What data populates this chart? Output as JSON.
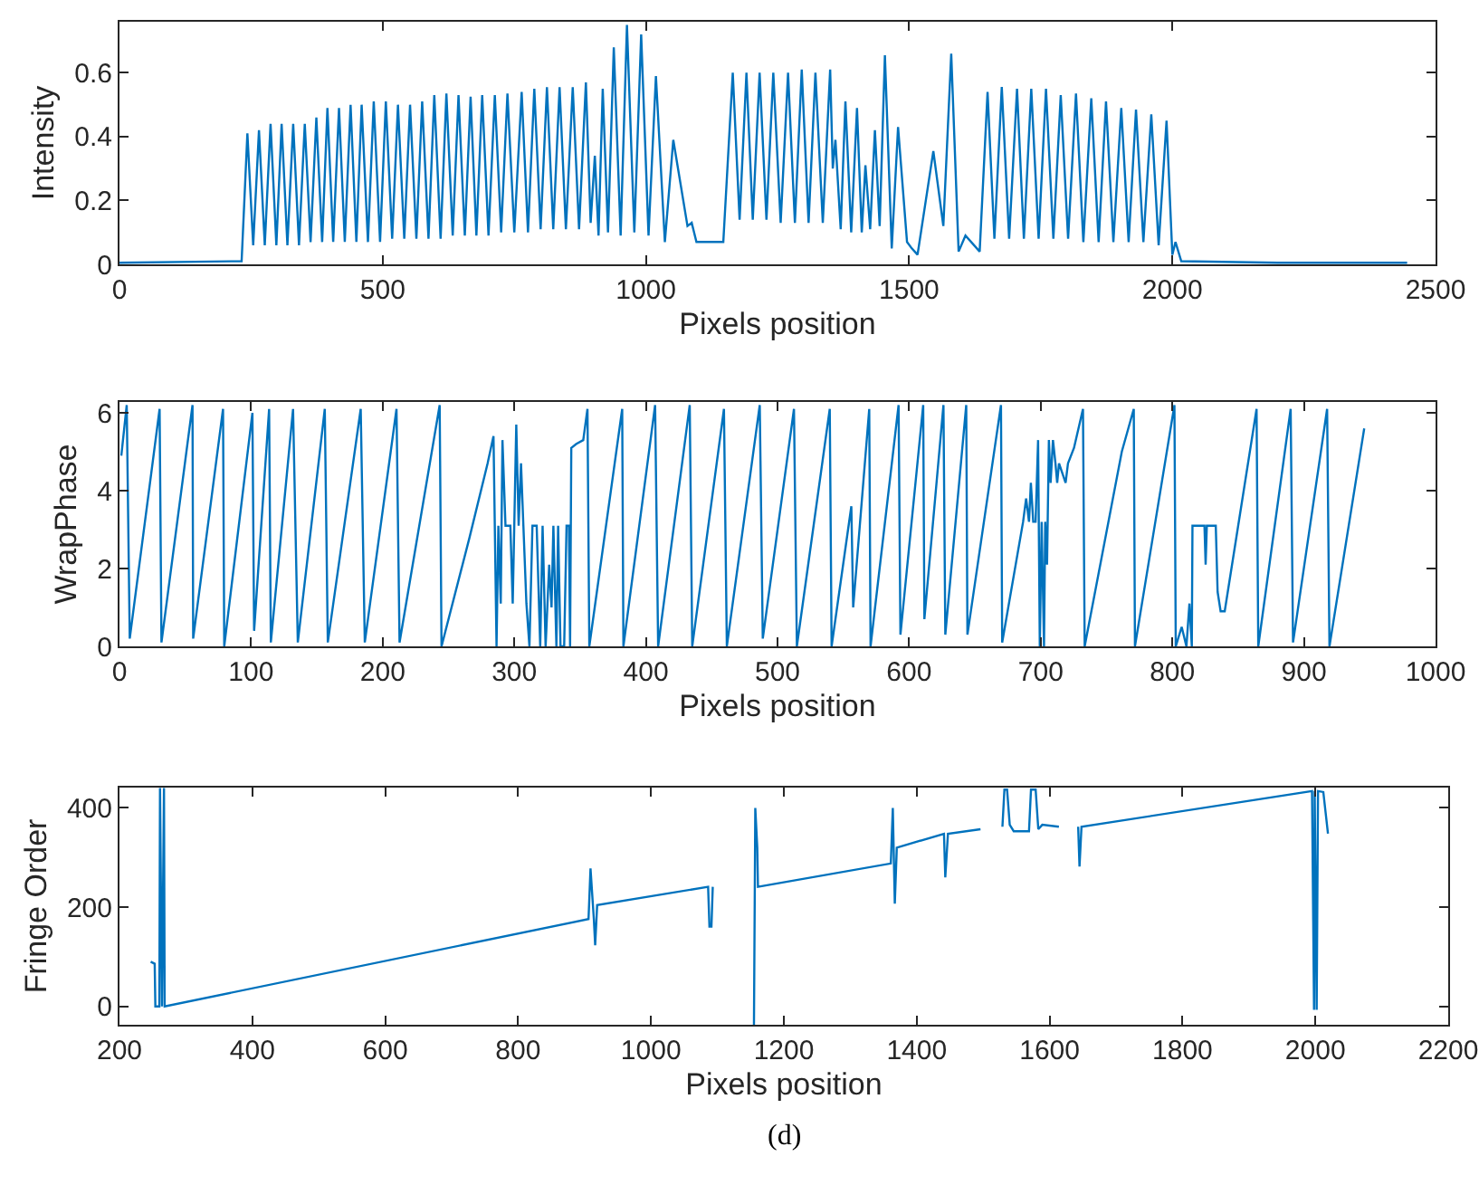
{
  "chart_data": [
    {
      "type": "line",
      "xlabel": "Pixels position",
      "ylabel": "Intensity",
      "xlim": [
        0,
        2500
      ],
      "ylim": [
        0,
        0.76
      ],
      "xticks": [
        0,
        500,
        1000,
        1500,
        2000,
        2500
      ],
      "yticks": [
        0,
        0.2,
        0.4,
        0.6
      ],
      "series": [
        {
          "color": "#0072bd",
          "x": [
            0,
            232,
            243,
            254,
            265,
            276,
            287,
            298,
            308,
            319,
            330,
            341,
            352,
            363,
            374,
            385,
            395,
            406,
            417,
            428,
            439,
            450,
            460,
            472,
            483,
            495,
            506,
            518,
            529,
            541,
            552,
            564,
            575,
            587,
            598,
            610,
            621,
            633,
            644,
            656,
            667,
            678,
            689,
            701,
            713,
            725,
            737,
            750,
            764,
            776,
            788,
            800,
            812,
            824,
            836,
            848,
            861,
            873,
            886,
            895,
            903,
            910,
            918,
            928,
            939,
            952,
            964,
            978,
            991,
            1005,
            1019,
            1036,
            1052,
            1079,
            1087,
            1096,
            1147,
            1165,
            1178,
            1191,
            1203,
            1216,
            1229,
            1242,
            1256,
            1270,
            1283,
            1296,
            1309,
            1322,
            1336,
            1350,
            1355,
            1360,
            1370,
            1379,
            1390,
            1401,
            1410,
            1417,
            1426,
            1435,
            1444,
            1454,
            1467,
            1479,
            1496,
            1505,
            1516,
            1546,
            1565,
            1580,
            1594,
            1607,
            1634,
            1649,
            1662,
            1676,
            1690,
            1705,
            1718,
            1732,
            1746,
            1760,
            1774,
            1788,
            1802,
            1817,
            1831,
            1846,
            1860,
            1874,
            1888,
            1903,
            1917,
            1931,
            1945,
            1960,
            1974,
            1989,
            2000,
            2006,
            2017,
            2200,
            2446
          ],
          "values": [
            0.005,
            0.01,
            0.41,
            0.06,
            0.42,
            0.06,
            0.44,
            0.06,
            0.44,
            0.06,
            0.44,
            0.06,
            0.44,
            0.07,
            0.46,
            0.07,
            0.49,
            0.07,
            0.49,
            0.07,
            0.5,
            0.07,
            0.5,
            0.07,
            0.51,
            0.07,
            0.51,
            0.08,
            0.5,
            0.08,
            0.5,
            0.08,
            0.51,
            0.08,
            0.53,
            0.08,
            0.535,
            0.09,
            0.53,
            0.09,
            0.525,
            0.09,
            0.53,
            0.09,
            0.53,
            0.1,
            0.535,
            0.1,
            0.54,
            0.1,
            0.55,
            0.11,
            0.555,
            0.11,
            0.555,
            0.11,
            0.555,
            0.11,
            0.57,
            0.13,
            0.34,
            0.09,
            0.55,
            0.1,
            0.68,
            0.09,
            0.75,
            0.1,
            0.72,
            0.09,
            0.59,
            0.07,
            0.39,
            0.12,
            0.13,
            0.07,
            0.07,
            0.6,
            0.14,
            0.6,
            0.14,
            0.6,
            0.14,
            0.6,
            0.13,
            0.6,
            0.13,
            0.61,
            0.13,
            0.6,
            0.13,
            0.61,
            0.3,
            0.39,
            0.11,
            0.51,
            0.1,
            0.49,
            0.1,
            0.31,
            0.11,
            0.42,
            0.12,
            0.655,
            0.05,
            0.43,
            0.07,
            0.05,
            0.03,
            0.355,
            0.12,
            0.66,
            0.04,
            0.09,
            0.04,
            0.54,
            0.08,
            0.556,
            0.08,
            0.55,
            0.08,
            0.55,
            0.08,
            0.55,
            0.08,
            0.53,
            0.08,
            0.535,
            0.07,
            0.52,
            0.07,
            0.51,
            0.07,
            0.49,
            0.07,
            0.485,
            0.07,
            0.47,
            0.06,
            0.45,
            0.03,
            0.07,
            0.01,
            0.005,
            0.005
          ]
        }
      ]
    },
    {
      "type": "line",
      "xlabel": "Pixels position",
      "ylabel": "WrapPhase",
      "xlim": [
        0,
        1000
      ],
      "ylim": [
        0,
        6.28
      ],
      "xticks": [
        0,
        100,
        200,
        300,
        400,
        500,
        600,
        700,
        800,
        900,
        1000
      ],
      "yticks": [
        0,
        2,
        4,
        6
      ],
      "series": [
        {
          "color": "#0072bd",
          "x": [
            1.4,
            5.5,
            7.8,
            30.5,
            31.9,
            55.5,
            56,
            78.7,
            79.6,
            101,
            102.3,
            113.7,
            115,
            131.9,
            135.5,
            156,
            158.3,
            183.3,
            186.4,
            210.5,
            212.8,
            243.3,
            244.7,
            266,
            279.7,
            284.2,
            286.5,
            287.9,
            289.7,
            291,
            293.3,
            297,
            298.8,
            301.5,
            303.3,
            305.1,
            306.9,
            309.2,
            311.5,
            313.8,
            317,
            319.7,
            321.5,
            323.8,
            326.5,
            328.3,
            329.7,
            332,
            333.3,
            335.1,
            337.9,
            339.7,
            341.5,
            342.4,
            343.3,
            347,
            352.4,
            355.6,
            357,
            382,
            382.9,
            407,
            409.3,
            433.3,
            435.2,
            459.3,
            461.5,
            486.5,
            488.8,
            512.5,
            514.7,
            539.7,
            541.1,
            556.1,
            557.5,
            569.7,
            570.7,
            592,
            593.4,
            610.7,
            611.6,
            626.1,
            627.5,
            643.4,
            644.3,
            669.8,
            670.7,
            686.6,
            688.9,
            691.1,
            692.5,
            694.3,
            696.1,
            698,
            699.3,
            700.7,
            702.5,
            703.4,
            704.8,
            706.2,
            707.5,
            709.3,
            711.2,
            712.5,
            713.9,
            718.9,
            720.7,
            725.3,
            732.1,
            733.4,
            761.6,
            770.7,
            771.6,
            801.6,
            802.6,
            807.1,
            810.7,
            813,
            814.8,
            815.3,
            824.4,
            825.3,
            826.2,
            833,
            834.4,
            836.7,
            839.8,
            864,
            865.3,
            889.9,
            891.7,
            917.6,
            919.4,
            945.8
          ],
          "values": [
            4.9,
            6.2,
            0.2,
            6.1,
            0.1,
            6.2,
            0.2,
            6.1,
            0,
            6,
            0.4,
            6.1,
            0.1,
            6.1,
            0.1,
            6.1,
            0.1,
            6.1,
            0.1,
            6.1,
            0.1,
            6.2,
            0,
            2.8,
            4.7,
            5.4,
            0,
            3.1,
            1.1,
            5.3,
            3.1,
            3.1,
            1.1,
            5.7,
            3.1,
            4.7,
            3.1,
            1.1,
            0,
            3.1,
            3.1,
            0,
            3.1,
            0,
            2.1,
            1,
            3.1,
            0,
            3.1,
            0,
            0,
            3.1,
            3.1,
            0,
            5.1,
            5.2,
            5.3,
            6.1,
            0,
            6.1,
            0,
            6.2,
            0,
            6.2,
            0,
            6.1,
            0,
            6.2,
            0.2,
            6.1,
            0,
            6.1,
            0,
            3.6,
            1,
            6.1,
            0,
            6.2,
            0.3,
            6.2,
            0.7,
            6.2,
            0.3,
            6.2,
            0.3,
            6.2,
            0.1,
            3.2,
            3.8,
            3.2,
            4.2,
            3.2,
            3.2,
            5.3,
            0,
            3.2,
            0,
            3.2,
            2.1,
            5.3,
            4.2,
            5.3,
            4.7,
            4.2,
            4.7,
            4.2,
            4.7,
            5.1,
            6.1,
            0,
            5,
            6.1,
            0,
            6.2,
            0,
            0.5,
            0,
            1.1,
            0,
            3.1,
            3.1,
            2.1,
            3.1,
            3.1,
            1.4,
            0.9,
            0.9,
            6.1,
            0,
            6.1,
            0.1,
            6.1,
            0,
            5.6
          ]
        }
      ]
    },
    {
      "type": "line",
      "xlabel": "Pixels position",
      "ylabel": "Fringe Order",
      "xlim": [
        200,
        2200
      ],
      "ylim": [
        -37,
        441
      ],
      "xticks": [
        200,
        400,
        600,
        800,
        1000,
        1200,
        1400,
        1600,
        1800,
        2000,
        2200
      ],
      "yticks": [
        0,
        200,
        400
      ],
      "annotations": [
        "(d)"
      ],
      "series": [
        {
          "color": "#0072bd",
          "x": [
            247,
            253,
            254,
            260,
            261,
            264,
            267,
            268,
            906,
            909,
            914,
            916,
            919,
            1086,
            1088,
            1091,
            1093,
            1120,
            1155,
            1157,
            1160,
            1161,
            1361,
            1364,
            1367,
            1370,
            1441,
            1443,
            1447,
            1496,
            1510,
            1529,
            1532,
            1536,
            1540,
            1546,
            1569,
            1572,
            1579,
            1583,
            1589,
            1614,
            1630,
            1643,
            1645,
            1648,
            1995,
            1998,
            1999,
            2002,
            2004,
            2012,
            2019
          ],
          "values": [
            90,
            86,
            0,
            0,
            440,
            0,
            440,
            0,
            176,
            278,
            176,
            123,
            204,
            241,
            161,
            161,
            241,
            null,
            -37,
            400,
            320,
            241,
            288,
            400,
            207,
            320,
            348,
            260,
            348,
            357,
            null,
            362,
            437,
            437,
            366,
            353,
            353,
            437,
            437,
            357,
            366,
            362,
            null,
            362,
            282,
            362,
            434,
            -7,
            434,
            -7,
            434,
            432,
            348
          ]
        }
      ]
    }
  ]
}
